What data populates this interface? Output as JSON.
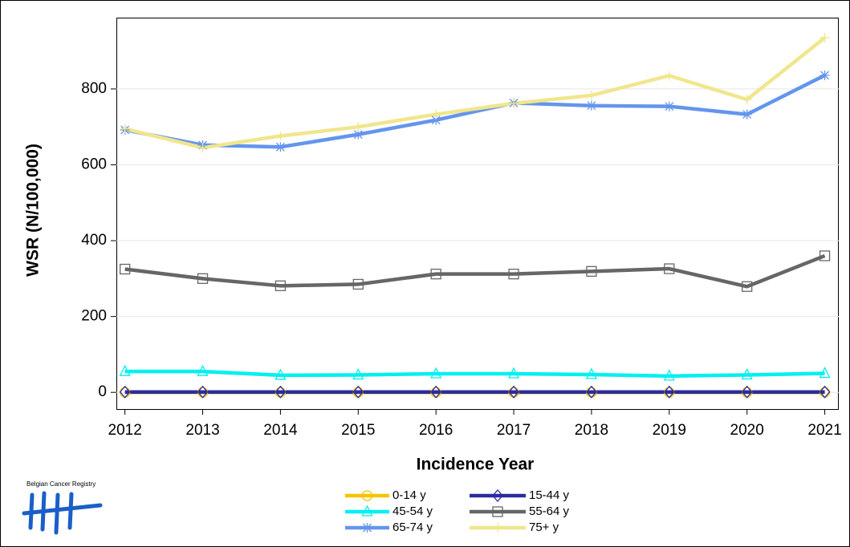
{
  "chart_data": {
    "type": "line",
    "x": [
      2012,
      2013,
      2014,
      2015,
      2016,
      2017,
      2018,
      2019,
      2020,
      2021
    ],
    "xlim": [
      2011.89,
      2021.18
    ],
    "xticks": [
      2012,
      2013,
      2014,
      2015,
      2016,
      2017,
      2018,
      2019,
      2020,
      2021
    ],
    "ylim": [
      -44,
      988
    ],
    "yticks": [
      0,
      200,
      400,
      600,
      800
    ],
    "grid": true,
    "xlabel": "Incidence Year",
    "ylabel": "WSR (N/100,000)",
    "series": [
      {
        "name": "0-14 y",
        "color": "#f5c400",
        "marker": "circle",
        "values": [
          0,
          0,
          0,
          0,
          0,
          0,
          0,
          0,
          0,
          0
        ]
      },
      {
        "name": "15-44 y",
        "color": "#2b2ba0",
        "marker": "diamond",
        "values": [
          1,
          1,
          1,
          1,
          1,
          1,
          1,
          1,
          1,
          1
        ]
      },
      {
        "name": "45-54 y",
        "color": "#00f0f0",
        "marker": "triangle",
        "values": [
          55,
          55,
          45,
          46,
          49,
          49,
          47,
          43,
          46,
          50
        ]
      },
      {
        "name": "55-64 y",
        "color": "#666666",
        "marker": "square",
        "values": [
          325,
          300,
          281,
          285,
          312,
          312,
          319,
          326,
          279,
          360
        ]
      },
      {
        "name": "65-74 y",
        "color": "#6495ed",
        "marker": "star",
        "values": [
          692,
          652,
          647,
          680,
          718,
          763,
          756,
          754,
          733,
          836
        ]
      },
      {
        "name": "75+ y",
        "color": "#f0e68c",
        "marker": "plus",
        "values": [
          695,
          645,
          676,
          700,
          733,
          762,
          783,
          835,
          772,
          935
        ]
      }
    ]
  },
  "logo": {
    "text": "Belgian Cancer Registry"
  }
}
